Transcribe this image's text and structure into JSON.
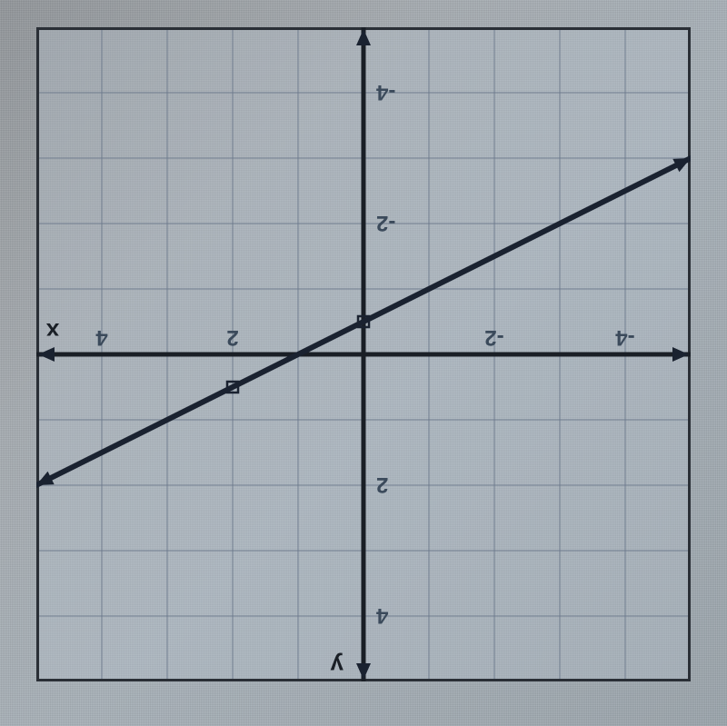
{
  "chart": {
    "type": "line",
    "orientation_deg": 180,
    "background_fill": "#b8c4cf",
    "grid_color": "#6c7a8c",
    "grid_minor_color": "#3b4a5b",
    "plot_border_color": "#2a2f36",
    "plot_border_width": 4,
    "axis_color": "#1a1f26",
    "axis_width": 5,
    "line_color": "#1a2230",
    "line_width": 6,
    "arrow_fill": "#1a2230",
    "point_marker_color": "#1a2230",
    "point_marker_size": 6,
    "label_fontsize": 24,
    "xlim": [
      -5,
      5
    ],
    "ylim": [
      -5,
      5
    ],
    "tick_step": 1,
    "labeled_ticks": [
      -4,
      -2,
      2,
      4
    ],
    "x_axis_label": "x",
    "y_axis_label": "y",
    "line_points": [
      {
        "x": -5,
        "y": -3
      },
      {
        "x": 5,
        "y": 2
      }
    ],
    "marked_points": [
      {
        "x": 0,
        "y": -0.5,
        "style": "open-square"
      },
      {
        "x": 2,
        "y": 0.5,
        "style": "open-square"
      }
    ]
  }
}
